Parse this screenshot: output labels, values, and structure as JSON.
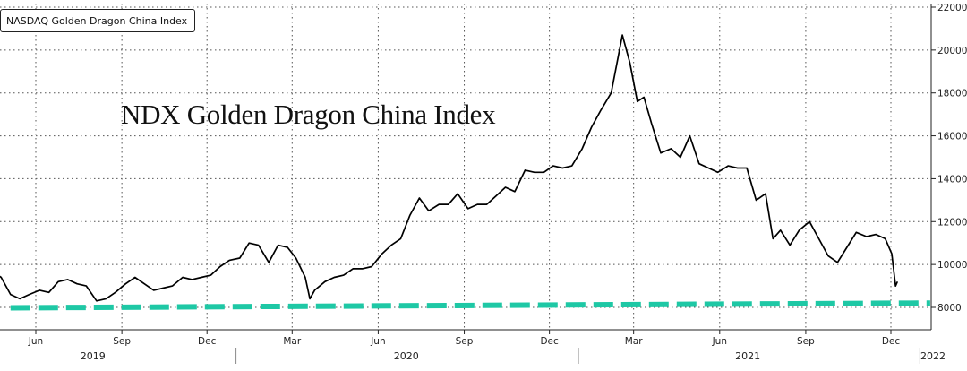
{
  "chart_data": {
    "type": "line",
    "legend_label": "NASDAQ Golden Dragon China Index",
    "annotation": "NDX Golden Dragon China Index",
    "ylim": [
      7600,
      22000
    ],
    "yticks": [
      8000,
      10000,
      12000,
      14000,
      16000,
      18000,
      20000,
      22000
    ],
    "y_tick_labels": [
      "8000",
      "10000",
      "12000",
      "14000",
      "16000",
      "18000",
      "20000",
      "22000"
    ],
    "x_month_ticks": [
      {
        "label": "Jun",
        "date": "2019-06-01"
      },
      {
        "label": "Sep",
        "date": "2019-09-01"
      },
      {
        "label": "Dec",
        "date": "2019-12-01"
      },
      {
        "label": "Mar",
        "date": "2020-03-01"
      },
      {
        "label": "Jun",
        "date": "2020-06-01"
      },
      {
        "label": "Sep",
        "date": "2020-09-01"
      },
      {
        "label": "Dec",
        "date": "2020-12-01"
      },
      {
        "label": "Mar",
        "date": "2021-03-01"
      },
      {
        "label": "Jun",
        "date": "2021-06-01"
      },
      {
        "label": "Sep",
        "date": "2021-09-01"
      },
      {
        "label": "Dec",
        "date": "2021-12-01"
      }
    ],
    "x_year_labels": [
      {
        "label": "2019",
        "date": "2019-08-01"
      },
      {
        "label": "2020",
        "date": "2020-07-01"
      },
      {
        "label": "2021",
        "date": "2021-07-01"
      },
      {
        "label": "2022",
        "date": "2022-01-15"
      }
    ],
    "year_separators": [
      "2020-01-01",
      "2021-01-01",
      "2022-01-01"
    ],
    "grid": true,
    "series": [
      {
        "color": "#000000",
        "points": [
          [
            "2019-04-15",
            9700
          ],
          [
            "2019-04-25",
            9400
          ],
          [
            "2019-05-05",
            8600
          ],
          [
            "2019-05-15",
            8400
          ],
          [
            "2019-05-25",
            8600
          ],
          [
            "2019-06-05",
            8800
          ],
          [
            "2019-06-15",
            8700
          ],
          [
            "2019-06-25",
            9200
          ],
          [
            "2019-07-05",
            9300
          ],
          [
            "2019-07-15",
            9100
          ],
          [
            "2019-07-25",
            9000
          ],
          [
            "2019-08-05",
            8300
          ],
          [
            "2019-08-15",
            8400
          ],
          [
            "2019-08-25",
            8700
          ],
          [
            "2019-09-05",
            9100
          ],
          [
            "2019-09-15",
            9400
          ],
          [
            "2019-09-25",
            9100
          ],
          [
            "2019-10-05",
            8800
          ],
          [
            "2019-10-15",
            8900
          ],
          [
            "2019-10-25",
            9000
          ],
          [
            "2019-11-05",
            9400
          ],
          [
            "2019-11-15",
            9300
          ],
          [
            "2019-11-25",
            9400
          ],
          [
            "2019-12-05",
            9500
          ],
          [
            "2019-12-15",
            9900
          ],
          [
            "2019-12-25",
            10200
          ],
          [
            "2020-01-05",
            10300
          ],
          [
            "2020-01-15",
            11000
          ],
          [
            "2020-01-25",
            10900
          ],
          [
            "2020-02-05",
            10100
          ],
          [
            "2020-02-15",
            10900
          ],
          [
            "2020-02-25",
            10800
          ],
          [
            "2020-03-05",
            10300
          ],
          [
            "2020-03-15",
            9400
          ],
          [
            "2020-03-20",
            8400
          ],
          [
            "2020-03-25",
            8800
          ],
          [
            "2020-04-05",
            9200
          ],
          [
            "2020-04-15",
            9400
          ],
          [
            "2020-04-25",
            9500
          ],
          [
            "2020-05-05",
            9800
          ],
          [
            "2020-05-15",
            9800
          ],
          [
            "2020-05-25",
            9900
          ],
          [
            "2020-06-05",
            10500
          ],
          [
            "2020-06-15",
            10900
          ],
          [
            "2020-06-25",
            11200
          ],
          [
            "2020-07-05",
            12300
          ],
          [
            "2020-07-15",
            13100
          ],
          [
            "2020-07-25",
            12500
          ],
          [
            "2020-08-05",
            12800
          ],
          [
            "2020-08-15",
            12800
          ],
          [
            "2020-08-25",
            13300
          ],
          [
            "2020-09-05",
            12600
          ],
          [
            "2020-09-15",
            12800
          ],
          [
            "2020-09-25",
            12800
          ],
          [
            "2020-10-05",
            13200
          ],
          [
            "2020-10-15",
            13600
          ],
          [
            "2020-10-25",
            13400
          ],
          [
            "2020-11-05",
            14400
          ],
          [
            "2020-11-15",
            14300
          ],
          [
            "2020-11-25",
            14300
          ],
          [
            "2020-12-05",
            14600
          ],
          [
            "2020-12-15",
            14500
          ],
          [
            "2020-12-25",
            14600
          ],
          [
            "2021-01-05",
            15400
          ],
          [
            "2021-01-15",
            16400
          ],
          [
            "2021-01-25",
            17200
          ],
          [
            "2021-02-05",
            18000
          ],
          [
            "2021-02-17",
            20700
          ],
          [
            "2021-02-25",
            19400
          ],
          [
            "2021-03-05",
            17600
          ],
          [
            "2021-03-12",
            17800
          ],
          [
            "2021-03-20",
            16600
          ],
          [
            "2021-03-30",
            15200
          ],
          [
            "2021-04-10",
            15400
          ],
          [
            "2021-04-20",
            15000
          ],
          [
            "2021-04-30",
            16000
          ],
          [
            "2021-05-10",
            14700
          ],
          [
            "2021-05-20",
            14500
          ],
          [
            "2021-05-30",
            14300
          ],
          [
            "2021-06-10",
            14600
          ],
          [
            "2021-06-20",
            14500
          ],
          [
            "2021-06-30",
            14500
          ],
          [
            "2021-07-10",
            13000
          ],
          [
            "2021-07-20",
            13300
          ],
          [
            "2021-07-28",
            11200
          ],
          [
            "2021-08-05",
            11600
          ],
          [
            "2021-08-15",
            10900
          ],
          [
            "2021-08-25",
            11600
          ],
          [
            "2021-09-05",
            12000
          ],
          [
            "2021-09-15",
            11200
          ],
          [
            "2021-09-25",
            10400
          ],
          [
            "2021-10-05",
            10100
          ],
          [
            "2021-10-15",
            10800
          ],
          [
            "2021-10-25",
            11500
          ],
          [
            "2021-11-05",
            11300
          ],
          [
            "2021-11-15",
            11400
          ],
          [
            "2021-11-25",
            11200
          ],
          [
            "2021-12-02",
            10500
          ],
          [
            "2021-12-06",
            9000
          ],
          [
            "2021-12-08",
            9200
          ]
        ]
      },
      {
        "color": "#1ec8a5",
        "dashed": true,
        "points": [
          [
            "2019-05-05",
            7980
          ],
          [
            "2022-01-12",
            8200
          ]
        ]
      }
    ]
  }
}
